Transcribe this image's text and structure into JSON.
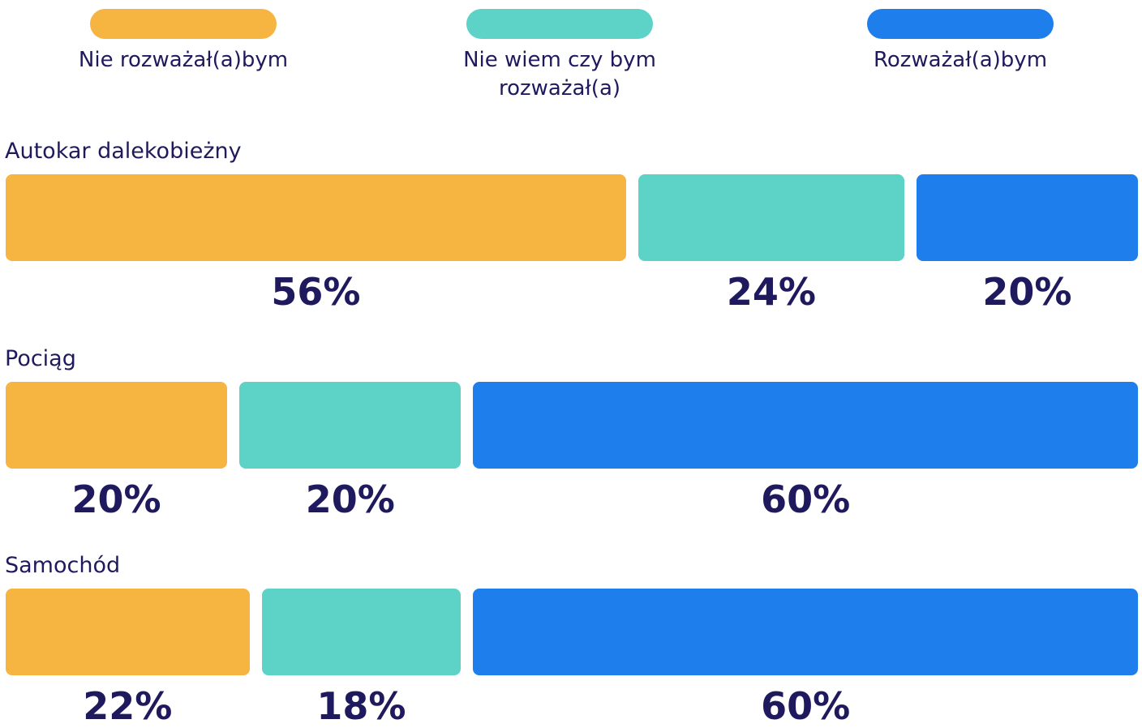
{
  "chart_data": {
    "type": "bar",
    "orientation": "horizontal",
    "stacked": true,
    "categories": [
      "Autokar dalekobieżny",
      "Pociąg",
      "Samochód"
    ],
    "series": [
      {
        "name": "Nie rozważał(a)bym",
        "color": "#f6b441",
        "values": [
          56,
          20,
          22
        ],
        "value_labels": [
          "56%",
          "20%",
          "22%"
        ]
      },
      {
        "name": "Nie wiem czy bym rozważał(a)",
        "color": "#5dd3c7",
        "values": [
          24,
          20,
          18
        ],
        "value_labels": [
          "24%",
          "20%",
          "18%"
        ]
      },
      {
        "name": "Rozważał(a)bym",
        "color": "#1e7fec",
        "values": [
          20,
          60,
          60
        ],
        "value_labels": [
          "20%",
          "60%",
          "60%"
        ]
      }
    ],
    "legend": "top"
  }
}
